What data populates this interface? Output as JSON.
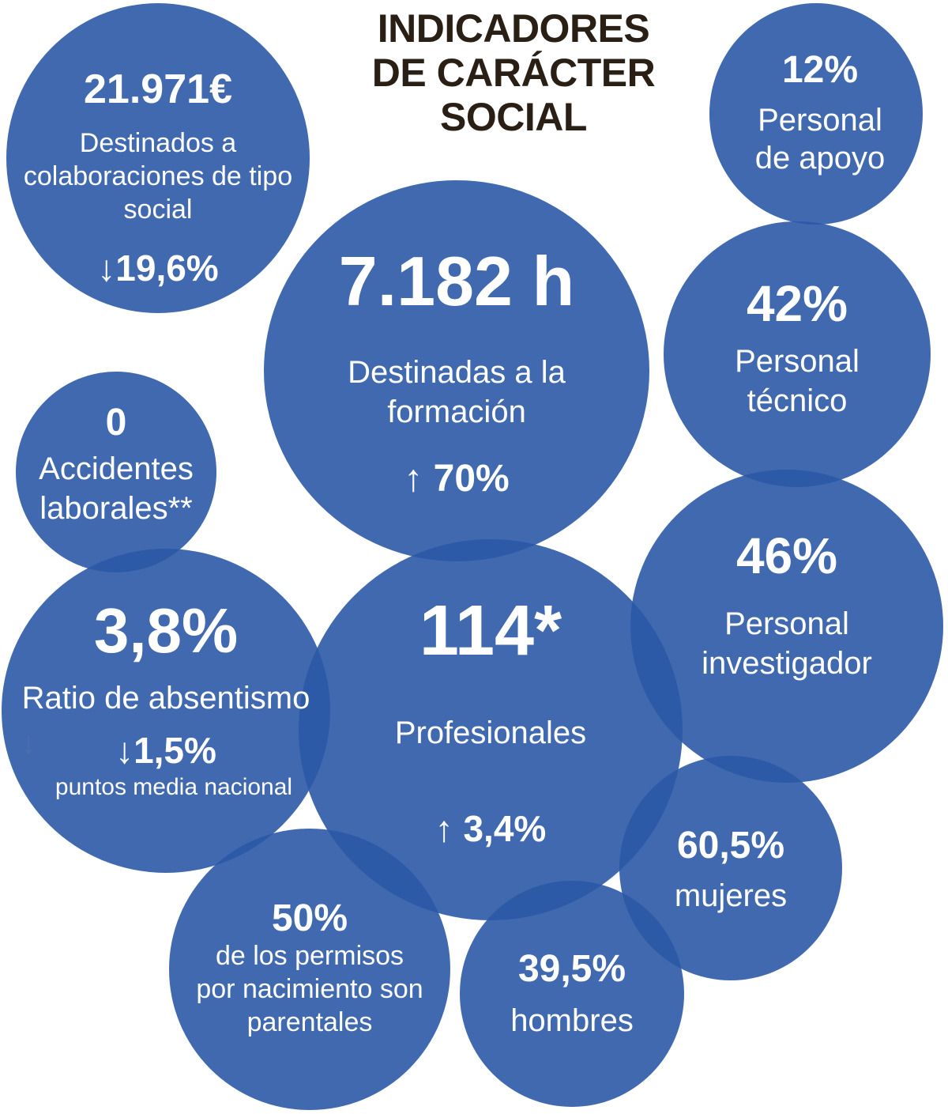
{
  "title": [
    "INDICADORES",
    "DE CARÁCTER",
    "SOCIAL"
  ],
  "colors": {
    "bubble": "#2B59A6",
    "title": "#2A1F14",
    "text": "#FFFFFF"
  },
  "indicators": {
    "colaboraciones": {
      "value": "21.971€",
      "label": [
        "Destinados a",
        "colaboraciones de tipo",
        "social"
      ],
      "change": "↓19,6%"
    },
    "formacion": {
      "value": "7.182 h",
      "label": [
        "Destinadas a la",
        "formación"
      ],
      "change": "↑ 70%"
    },
    "apoyo": {
      "value": "12%",
      "label": [
        "Personal",
        "de apoyo"
      ]
    },
    "tecnico": {
      "value": "42%",
      "label": [
        "Personal",
        "técnico"
      ]
    },
    "accidentes": {
      "value": "0",
      "label": [
        "Accidentes",
        "laborales**"
      ]
    },
    "absentismo": {
      "value": "3,8%",
      "label": "Ratio de absentismo",
      "change": "↓1,5%",
      "note": "puntos media nacional"
    },
    "profesionales": {
      "value": "114*",
      "label": "Profesionales",
      "change": "↑ 3,4%"
    },
    "investigador": {
      "value": "46%",
      "label": [
        "Personal",
        "investigador"
      ]
    },
    "mujeres": {
      "value": "60,5%",
      "label": "mujeres"
    },
    "permisos": {
      "value": "50%",
      "label": [
        "de los permisos",
        "por nacimiento son",
        "parentales"
      ]
    },
    "hombres": {
      "value": "39,5%",
      "label": "hombres"
    }
  }
}
